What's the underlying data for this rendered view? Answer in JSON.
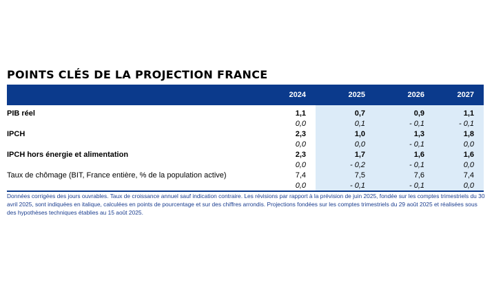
{
  "title": "POINTS CLÉS DE LA PROJECTION FRANCE",
  "table": {
    "headers": [
      "",
      "2024",
      "2025",
      "2026",
      "2027"
    ],
    "rows": [
      {
        "label": "PIB réel",
        "values": [
          "1,1",
          "0,7",
          "0,9",
          "1,1"
        ],
        "revisions": [
          "0,0",
          "0,1",
          "- 0,1",
          "- 0,1"
        ]
      },
      {
        "label": "IPCH",
        "values": [
          "2,3",
          "1,0",
          "1,3",
          "1,8"
        ],
        "revisions": [
          "0,0",
          "0,0",
          "- 0,1",
          "0,0"
        ]
      },
      {
        "label": "IPCH hors énergie et alimentation",
        "values": [
          "2,3",
          "1,7",
          "1,6",
          "1,6"
        ],
        "revisions": [
          "0,0",
          "- 0,2",
          "- 0,1",
          "0,0"
        ]
      },
      {
        "label": "Taux de chômage (BIT, France entière, % de la population active)",
        "values": [
          "7,4",
          "7,5",
          "7,6",
          "7,4"
        ],
        "revisions": [
          "0,0",
          "- 0,1",
          "- 0,1",
          "0,0"
        ]
      }
    ]
  },
  "notes": "Données corrigées des jours ouvrables. Taux de croissance annuel sauf indication contraire. Les révisions par rapport à la prévision de juin 2025, fondée sur les comptes trimestriels du 30 avril 2025, sont indiquées en italique, calculées en points de pourcentage et sur des chiffres arrondis. Projections fondées sur les comptes trimestriels du 29 août 2025 et réalisées sous des hypothèses techniques établies au 15 août 2025.",
  "colors": {
    "header_bg": "#0b3a8c",
    "shade": "#dcebf8",
    "notes_text": "#1a3d8f"
  }
}
